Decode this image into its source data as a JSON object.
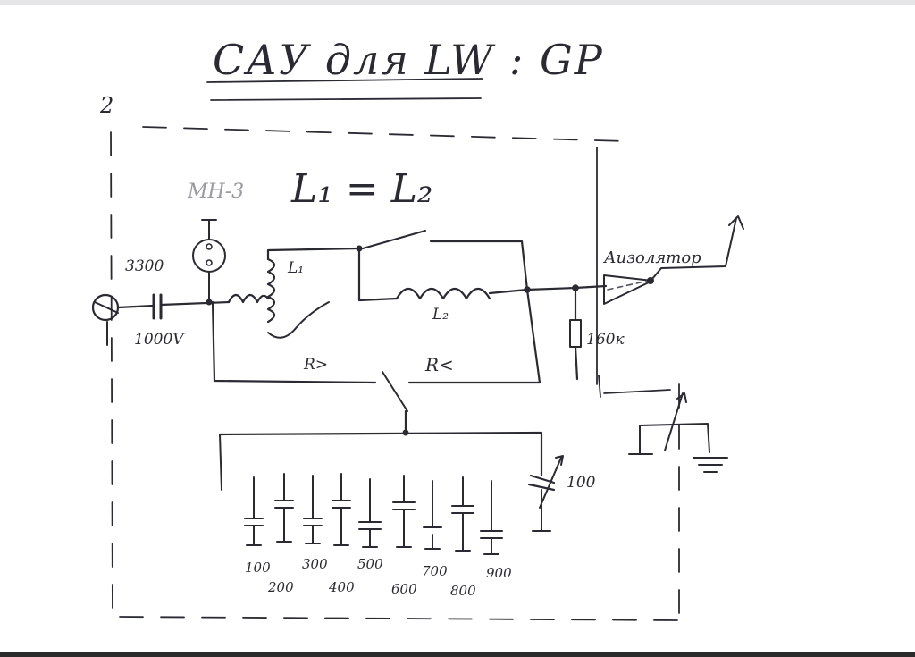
{
  "title": "САУ для LW : GP",
  "corner_mark": "2",
  "equation": "L₁ = L₂",
  "tube_label": "МН-3",
  "components": {
    "coupling_cap_value": "3300",
    "coupling_cap_voltage": "1000V",
    "coil_1": "L₁",
    "coil_2": "L₂",
    "switch_left": "R>",
    "switch_right": "R<",
    "resistor": "160к",
    "insulator": "Аизолятор",
    "variable_cap": "100"
  },
  "capacitor_bank": [
    "100",
    "200",
    "300",
    "400",
    "500",
    "600",
    "700",
    "800",
    "900"
  ]
}
